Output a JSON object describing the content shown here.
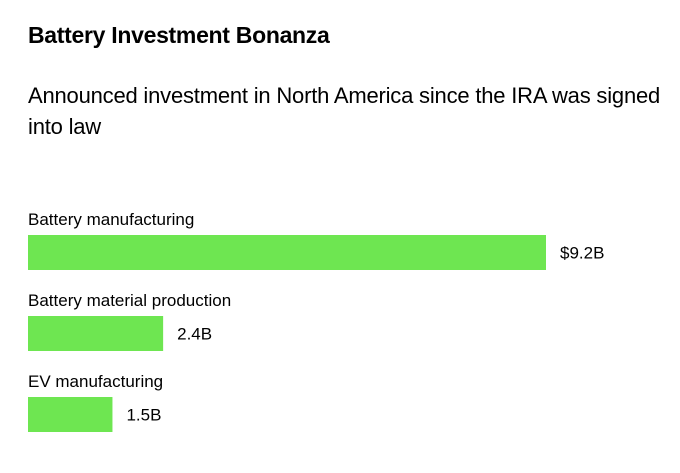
{
  "chart_data": {
    "type": "bar",
    "orientation": "horizontal",
    "title": "Battery Investment Bonanza",
    "subtitle": "Announced investment in North America since the IRA was signed into law",
    "categories": [
      "Battery manufacturing",
      "Battery material production",
      "EV manufacturing"
    ],
    "values": [
      9.2,
      2.4,
      1.5
    ],
    "value_labels": [
      "$9.2B",
      "2.4B",
      "1.5B"
    ],
    "unit": "billion USD",
    "xlabel": "",
    "ylabel": "",
    "xlim": [
      0,
      9.2
    ],
    "grid": false,
    "legend": "none",
    "bar_color": "#6ee651"
  }
}
